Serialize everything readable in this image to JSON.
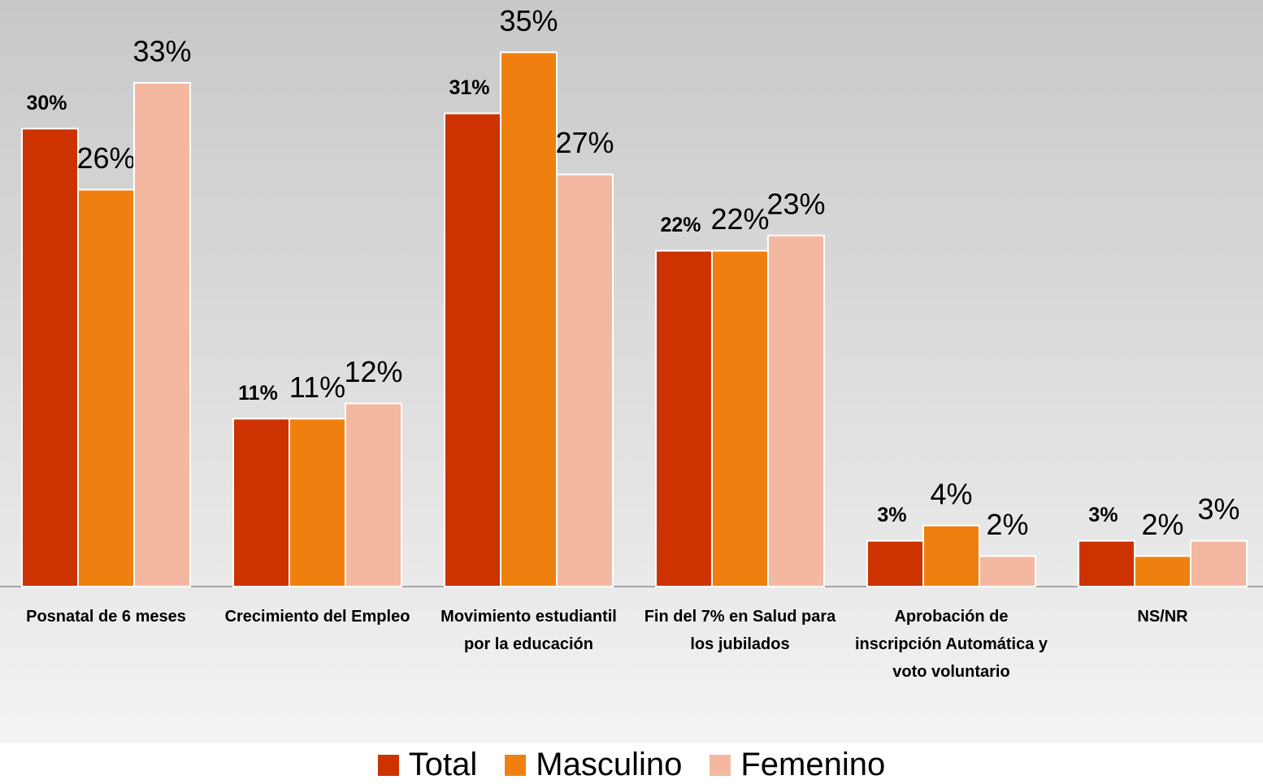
{
  "chart_data": {
    "type": "bar",
    "categories": [
      "Posnatal de 6 meses",
      "Crecimiento del Empleo",
      "Movimiento estudiantil por la educación",
      "Fin del 7% en Salud para los jubilados",
      "Aprobación de inscripción Automática y voto voluntario",
      "NS/NR"
    ],
    "series": [
      {
        "name": "Total",
        "color": "#cc3300",
        "values": [
          30,
          11,
          31,
          22,
          3,
          3
        ],
        "value_labels": [
          "30%",
          "11%",
          "31%",
          "22%",
          "3%",
          "3%"
        ]
      },
      {
        "name": "Masculino",
        "color": "#ef8010",
        "values": [
          26,
          11,
          35,
          22,
          4,
          2
        ],
        "value_labels": [
          "26%",
          "11%",
          "35%",
          "22%",
          "4%",
          "2%"
        ]
      },
      {
        "name": "Femenino",
        "color": "#f4b8a0",
        "values": [
          33,
          12,
          27,
          23,
          2,
          3
        ],
        "value_labels": [
          "33%",
          "12%",
          "27%",
          "23%",
          "2%",
          "3%"
        ]
      }
    ],
    "ylim": [
      0,
      38
    ]
  }
}
